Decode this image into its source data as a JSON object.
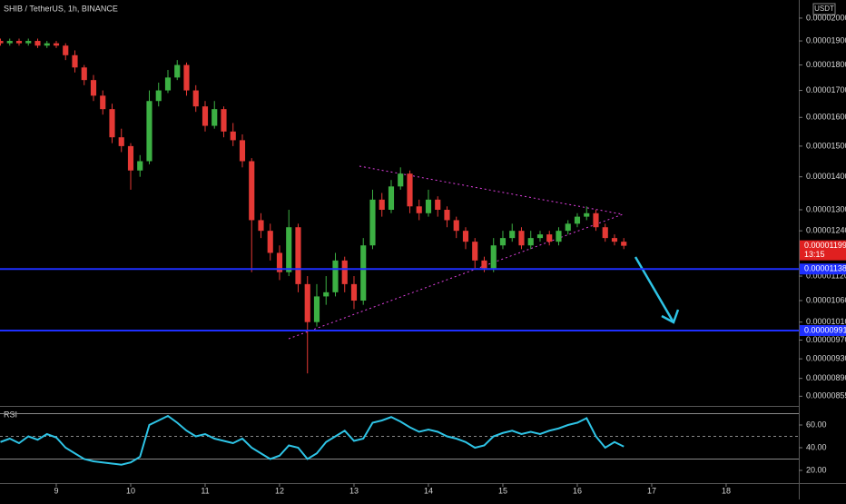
{
  "chart_data": {
    "type": "candlestick",
    "title": "SHIB / TetherUS, 1h, BINANCE",
    "currency": "USDT",
    "log": true,
    "up_color": "#3cb043",
    "down_color": "#e53935",
    "x": [
      8.25,
      8.375,
      8.5,
      8.625,
      8.75,
      8.875,
      9,
      9.125,
      9.25,
      9.375,
      9.5,
      9.625,
      9.75,
      9.875,
      10,
      10.125,
      10.25,
      10.375,
      10.5,
      10.625,
      10.75,
      10.875,
      11,
      11.125,
      11.25,
      11.375,
      11.5,
      11.625,
      11.75,
      11.875,
      12,
      12.125,
      12.25,
      12.375,
      12.5,
      12.625,
      12.75,
      12.875,
      13,
      13.125,
      13.25,
      13.375,
      13.5,
      13.625,
      13.75,
      13.875,
      14,
      14.125,
      14.25,
      14.375,
      14.5,
      14.625,
      14.75,
      14.875,
      15,
      15.125,
      15.25,
      15.375,
      15.5,
      15.625,
      15.75,
      15.875,
      16,
      16.125,
      16.25,
      16.375,
      16.5,
      16.625
    ],
    "open": [
      1.9e-05,
      1.89e-05,
      1.9e-05,
      1.89e-05,
      1.9e-05,
      1.88e-05,
      1.89e-05,
      1.88e-05,
      1.84e-05,
      1.79e-05,
      1.74e-05,
      1.68e-05,
      1.63e-05,
      1.53e-05,
      1.5e-05,
      1.42e-05,
      1.45e-05,
      1.66e-05,
      1.7e-05,
      1.75e-05,
      1.8e-05,
      1.7e-05,
      1.64e-05,
      1.57e-05,
      1.63e-05,
      1.55e-05,
      1.52e-05,
      1.45e-05,
      1.27e-05,
      1.24e-05,
      1.18e-05,
      1.13e-05,
      1.25e-05,
      1.1e-05,
      1.01e-05,
      1.07e-05,
      1.08e-05,
      1.16e-05,
      1.1e-05,
      1.06e-05,
      1.2e-05,
      1.33e-05,
      1.3e-05,
      1.37e-05,
      1.41e-05,
      1.31e-05,
      1.29e-05,
      1.33e-05,
      1.3e-05,
      1.27e-05,
      1.24e-05,
      1.21e-05,
      1.16e-05,
      1.14e-05,
      1.2e-05,
      1.22e-05,
      1.24e-05,
      1.2e-05,
      1.22e-05,
      1.23e-05,
      1.21e-05,
      1.24e-05,
      1.26e-05,
      1.28e-05,
      1.29e-05,
      1.25e-05,
      1.22e-05,
      1.21e-05
    ],
    "high": [
      1.91e-05,
      1.91e-05,
      1.91e-05,
      1.91e-05,
      1.91e-05,
      1.9e-05,
      1.9e-05,
      1.89e-05,
      1.86e-05,
      1.8e-05,
      1.76e-05,
      1.7e-05,
      1.65e-05,
      1.56e-05,
      1.51e-05,
      1.47e-05,
      1.7e-05,
      1.73e-05,
      1.78e-05,
      1.82e-05,
      1.81e-05,
      1.72e-05,
      1.66e-05,
      1.66e-05,
      1.64e-05,
      1.58e-05,
      1.54e-05,
      1.46e-05,
      1.29e-05,
      1.26e-05,
      1.2e-05,
      1.3e-05,
      1.26e-05,
      1.12e-05,
      1.1e-05,
      1.12e-05,
      1.18e-05,
      1.17e-05,
      1.12e-05,
      1.22e-05,
      1.36e-05,
      1.35e-05,
      1.39e-05,
      1.43e-05,
      1.42e-05,
      1.33e-05,
      1.36e-05,
      1.34e-05,
      1.31e-05,
      1.28e-05,
      1.25e-05,
      1.22e-05,
      1.17e-05,
      1.22e-05,
      1.24e-05,
      1.26e-05,
      1.25e-05,
      1.24e-05,
      1.24e-05,
      1.24e-05,
      1.25e-05,
      1.27e-05,
      1.29e-05,
      1.31e-05,
      1.3e-05,
      1.26e-05,
      1.23e-05,
      1.22e-05
    ],
    "low": [
      1.88e-05,
      1.88e-05,
      1.88e-05,
      1.88e-05,
      1.87e-05,
      1.87e-05,
      1.87e-05,
      1.82e-05,
      1.77e-05,
      1.72e-05,
      1.66e-05,
      1.61e-05,
      1.51e-05,
      1.48e-05,
      1.36e-05,
      1.4e-05,
      1.44e-05,
      1.64e-05,
      1.69e-05,
      1.74e-05,
      1.68e-05,
      1.62e-05,
      1.55e-05,
      1.56e-05,
      1.53e-05,
      1.5e-05,
      1.43e-05,
      1.13e-05,
      1.22e-05,
      1.16e-05,
      1.11e-05,
      1.12e-05,
      1.08e-05,
      9e-06,
      1e-05,
      1.05e-05,
      1.07e-05,
      1.08e-05,
      1.04e-05,
      1.05e-05,
      1.19e-05,
      1.28e-05,
      1.29e-05,
      1.36e-05,
      1.29e-05,
      1.27e-05,
      1.28e-05,
      1.28e-05,
      1.25e-05,
      1.22e-05,
      1.19e-05,
      1.14e-05,
      1.13e-05,
      1.13e-05,
      1.19e-05,
      1.21e-05,
      1.19e-05,
      1.19e-05,
      1.21e-05,
      1.2e-05,
      1.2e-05,
      1.23e-05,
      1.25e-05,
      1.27e-05,
      1.24e-05,
      1.21e-05,
      1.2e-05,
      1.19e-05
    ],
    "close": [
      1.89e-05,
      1.9e-05,
      1.89e-05,
      1.9e-05,
      1.88e-05,
      1.89e-05,
      1.88e-05,
      1.84e-05,
      1.79e-05,
      1.74e-05,
      1.68e-05,
      1.63e-05,
      1.53e-05,
      1.5e-05,
      1.42e-05,
      1.45e-05,
      1.66e-05,
      1.7e-05,
      1.75e-05,
      1.8e-05,
      1.7e-05,
      1.64e-05,
      1.57e-05,
      1.63e-05,
      1.55e-05,
      1.52e-05,
      1.45e-05,
      1.27e-05,
      1.24e-05,
      1.18e-05,
      1.13e-05,
      1.25e-05,
      1.1e-05,
      1.01e-05,
      1.07e-05,
      1.08e-05,
      1.16e-05,
      1.1e-05,
      1.06e-05,
      1.2e-05,
      1.33e-05,
      1.3e-05,
      1.37e-05,
      1.41e-05,
      1.31e-05,
      1.29e-05,
      1.33e-05,
      1.3e-05,
      1.27e-05,
      1.24e-05,
      1.21e-05,
      1.16e-05,
      1.14e-05,
      1.2e-05,
      1.22e-05,
      1.24e-05,
      1.2e-05,
      1.22e-05,
      1.23e-05,
      1.21e-05,
      1.24e-05,
      1.26e-05,
      1.28e-05,
      1.29e-05,
      1.25e-05,
      1.22e-05,
      1.21e-05,
      1.199e-05
    ],
    "xlim": [
      8.244,
      18.976
    ],
    "xticks": [
      9,
      10,
      11,
      12,
      13,
      14,
      15,
      16,
      17,
      18
    ],
    "ylim": [
      8.4e-06,
      2.083e-05
    ],
    "yticks": [
      {
        "value": 2e-05,
        "label": "0.00002000"
      },
      {
        "value": 1.9e-05,
        "label": "0.00001900"
      },
      {
        "value": 1.8e-05,
        "label": "0.00001800"
      },
      {
        "value": 1.7e-05,
        "label": "0.00001700"
      },
      {
        "value": 1.6e-05,
        "label": "0.00001600"
      },
      {
        "value": 1.5e-05,
        "label": "0.00001500"
      },
      {
        "value": 1.4e-05,
        "label": "0.00001400"
      },
      {
        "value": 1.3e-05,
        "label": "0.00001300"
      },
      {
        "value": 1.24e-05,
        "label": "0.00001240"
      },
      {
        "value": 1.12e-05,
        "label": "0.00001120"
      },
      {
        "value": 1.06e-05,
        "label": "0.00001060"
      },
      {
        "value": 1.01e-05,
        "label": "0.00001010"
      },
      {
        "value": 9.7e-06,
        "label": "0.00000970"
      },
      {
        "value": 9.3e-06,
        "label": "0.00000930"
      },
      {
        "value": 8.9e-06,
        "label": "0.00000890"
      },
      {
        "value": 8.55e-06,
        "label": "0.00000855"
      }
    ],
    "hlines": [
      {
        "value": 1.138e-05,
        "label": "0.00001138"
      },
      {
        "value": 9.91e-06,
        "label": "0.00000991"
      }
    ],
    "hline_color": "#1e2fff",
    "last_price": {
      "value": 1.199e-05,
      "label": "0.00001199"
    },
    "countdown": "13:15",
    "indicator": {
      "name": "RSI",
      "color": "#2ec4e6",
      "values": [
        45,
        48,
        44,
        50,
        47,
        52,
        49,
        40,
        35,
        30,
        28,
        27,
        26,
        25,
        27,
        32,
        60,
        64,
        68,
        62,
        55,
        50,
        52,
        48,
        46,
        44,
        48,
        40,
        35,
        30,
        33,
        42,
        40,
        30,
        35,
        45,
        50,
        55,
        46,
        48,
        62,
        64,
        67,
        63,
        58,
        54,
        56,
        54,
        50,
        48,
        45,
        40,
        42,
        50,
        53,
        55,
        52,
        54,
        52,
        55,
        57,
        60,
        62,
        66,
        50,
        40,
        45,
        41
      ],
      "ylim": [
        8.8,
        76.8
      ],
      "yticks": [
        {
          "value": 60,
          "label": "60.00"
        },
        {
          "value": 40,
          "label": "40.00"
        },
        {
          "value": 20,
          "label": "20.00"
        }
      ],
      "levels": [
        70,
        50,
        30
      ]
    }
  }
}
